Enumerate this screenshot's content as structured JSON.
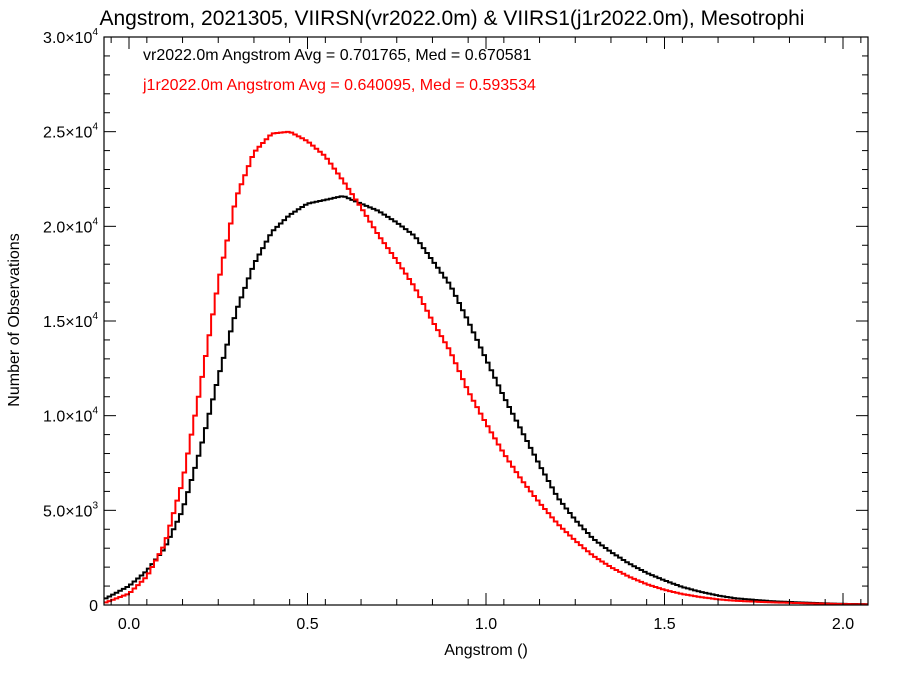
{
  "chart_data": {
    "type": "line",
    "title": "Angstrom, 2021305, VIIRSN(vr2022.0m) & VIIRS1(j1r2022.0m), Mesotrophi",
    "xlabel": "Angstrom ()",
    "ylabel": "Number of Observations",
    "xlim": [
      -0.07,
      2.07
    ],
    "ylim": [
      0,
      30000
    ],
    "x_ticks": [
      {
        "value": 0.0,
        "label": "0.0"
      },
      {
        "value": 0.5,
        "label": "0.5"
      },
      {
        "value": 1.0,
        "label": "1.0"
      },
      {
        "value": 1.5,
        "label": "1.5"
      },
      {
        "value": 2.0,
        "label": "2.0"
      }
    ],
    "y_ticks": [
      {
        "value": 0,
        "mantissa": "0",
        "exponent": ""
      },
      {
        "value": 5000,
        "mantissa": "5.0×10",
        "exponent": "3"
      },
      {
        "value": 10000,
        "mantissa": "1.0×10",
        "exponent": "4"
      },
      {
        "value": 15000,
        "mantissa": "1.5×10",
        "exponent": "4"
      },
      {
        "value": 20000,
        "mantissa": "2.0×10",
        "exponent": "4"
      },
      {
        "value": 25000,
        "mantissa": "2.5×10",
        "exponent": "4"
      },
      {
        "value": 30000,
        "mantissa": "3.0×10",
        "exponent": "4"
      }
    ],
    "step": "histogram",
    "series": [
      {
        "name": "vr2022.0m",
        "color": "#000000",
        "legend_text": "vr2022.0m Angstrom Avg = 0.701765, Med = 0.670581",
        "x": [
          -0.07,
          0.0,
          0.05,
          0.1,
          0.15,
          0.2,
          0.25,
          0.3,
          0.35,
          0.4,
          0.45,
          0.5,
          0.55,
          0.6,
          0.65,
          0.7,
          0.75,
          0.8,
          0.85,
          0.9,
          0.95,
          1.0,
          1.05,
          1.1,
          1.15,
          1.2,
          1.25,
          1.3,
          1.35,
          1.4,
          1.45,
          1.5,
          1.55,
          1.6,
          1.65,
          1.7,
          1.8,
          1.9,
          2.0,
          2.07
        ],
        "y": [
          300,
          1000,
          1800,
          3000,
          5000,
          8200,
          12000,
          15500,
          18000,
          19700,
          20600,
          21200,
          21400,
          21600,
          21200,
          20800,
          20200,
          19500,
          18200,
          16900,
          15000,
          13000,
          11000,
          9200,
          7400,
          5700,
          4500,
          3500,
          2800,
          2200,
          1700,
          1300,
          950,
          700,
          500,
          350,
          200,
          120,
          60,
          40
        ]
      },
      {
        "name": "j1r2022.0m",
        "color": "#ff0000",
        "legend_text": "j1r2022.0m Angstrom Avg = 0.640095, Med = 0.593534",
        "x": [
          -0.07,
          0.0,
          0.05,
          0.1,
          0.15,
          0.2,
          0.25,
          0.3,
          0.35,
          0.4,
          0.45,
          0.5,
          0.55,
          0.6,
          0.65,
          0.7,
          0.75,
          0.8,
          0.85,
          0.9,
          0.95,
          1.0,
          1.05,
          1.1,
          1.15,
          1.2,
          1.25,
          1.3,
          1.35,
          1.4,
          1.45,
          1.5,
          1.55,
          1.6,
          1.65,
          1.7,
          1.8,
          1.9,
          2.0,
          2.07
        ],
        "y": [
          100,
          600,
          1500,
          3200,
          6500,
          11500,
          17000,
          21500,
          23900,
          24900,
          25000,
          24500,
          23700,
          22400,
          21000,
          19500,
          18200,
          16800,
          15000,
          13400,
          11300,
          9600,
          8000,
          6600,
          5400,
          4300,
          3400,
          2600,
          2000,
          1500,
          1100,
          800,
          580,
          420,
          300,
          220,
          140,
          90,
          50,
          30
        ]
      }
    ]
  }
}
